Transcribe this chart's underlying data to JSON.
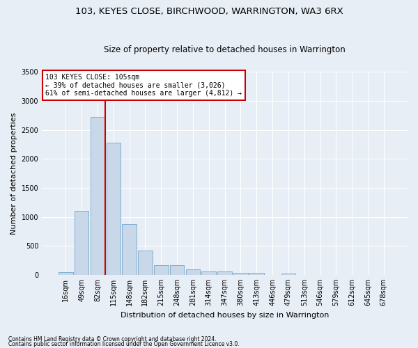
{
  "title": "103, KEYES CLOSE, BIRCHWOOD, WARRINGTON, WA3 6RX",
  "subtitle": "Size of property relative to detached houses in Warrington",
  "xlabel": "Distribution of detached houses by size in Warrington",
  "ylabel": "Number of detached properties",
  "footnote1": "Contains HM Land Registry data © Crown copyright and database right 2024.",
  "footnote2": "Contains public sector information licensed under the Open Government Licence v3.0.",
  "bar_labels": [
    "16sqm",
    "49sqm",
    "82sqm",
    "115sqm",
    "148sqm",
    "182sqm",
    "215sqm",
    "248sqm",
    "281sqm",
    "314sqm",
    "347sqm",
    "380sqm",
    "413sqm",
    "446sqm",
    "479sqm",
    "513sqm",
    "546sqm",
    "579sqm",
    "612sqm",
    "645sqm",
    "678sqm"
  ],
  "bar_values": [
    50,
    1100,
    2720,
    2280,
    880,
    420,
    165,
    165,
    90,
    60,
    55,
    30,
    30,
    0,
    20,
    0,
    0,
    0,
    0,
    0,
    0
  ],
  "bar_color": "#c8d8e8",
  "bar_edgecolor": "#6fa8d0",
  "vline_pos": 2.5,
  "vline_color": "#cc0000",
  "annotation_text": "103 KEYES CLOSE: 105sqm\n← 39% of detached houses are smaller (3,026)\n61% of semi-detached houses are larger (4,812) →",
  "annotation_box_color": "#cc0000",
  "ylim": [
    0,
    3500
  ],
  "yticks": [
    0,
    500,
    1000,
    1500,
    2000,
    2500,
    3000,
    3500
  ],
  "plot_bg_color": "#e8eef5",
  "fig_bg_color": "#e8eef5",
  "grid_color": "#ffffff",
  "title_fontsize": 9.5,
  "subtitle_fontsize": 8.5,
  "ylabel_fontsize": 8,
  "xlabel_fontsize": 8,
  "tick_fontsize": 7,
  "annot_fontsize": 7
}
